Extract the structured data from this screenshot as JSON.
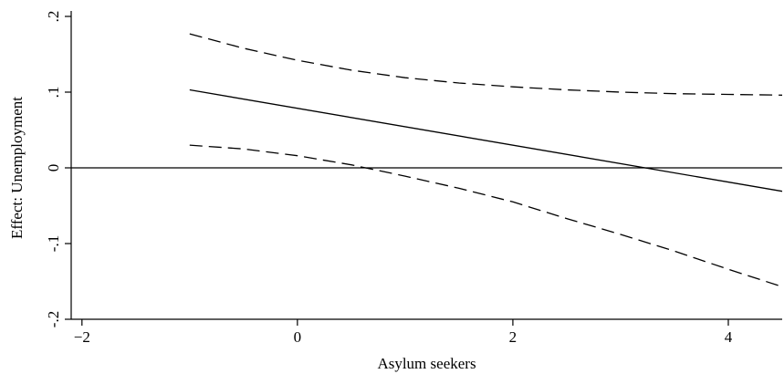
{
  "chart_data": {
    "type": "line",
    "title": "",
    "xlabel": "Asylum seekers",
    "ylabel": "Effect: Unemployment",
    "xlim": [
      -2.1,
      4.5
    ],
    "ylim": [
      -0.2,
      0.2
    ],
    "x_ticks": [
      {
        "value": -2,
        "label": "−2"
      },
      {
        "value": 0,
        "label": "0"
      },
      {
        "value": 2,
        "label": "2"
      },
      {
        "value": 4,
        "label": "4"
      }
    ],
    "y_ticks": [
      {
        "value": -0.2,
        "label": "-.2"
      },
      {
        "value": -0.1,
        "label": "-.1"
      },
      {
        "value": 0,
        "label": "0"
      },
      {
        "value": 0.1,
        "label": ".1"
      },
      {
        "value": 0.2,
        "label": ".2"
      }
    ],
    "reference_line_y": 0,
    "grid": false,
    "legend": "none",
    "series": [
      {
        "style": "solid",
        "x": [
          -1,
          4.5
        ],
        "y": [
          0.103,
          -0.031
        ]
      },
      {
        "style": "dashed",
        "x": [
          -1,
          -0.5,
          0,
          0.5,
          1,
          1.5,
          2,
          2.5,
          3,
          3.5,
          4,
          4.5
        ],
        "y": [
          0.177,
          0.158,
          0.142,
          0.129,
          0.119,
          0.112,
          0.107,
          0.103,
          0.1,
          0.098,
          0.097,
          0.096
        ]
      },
      {
        "style": "dashed",
        "x": [
          -1,
          -0.5,
          0,
          0.5,
          1,
          1.5,
          2,
          2.5,
          3,
          3.5,
          4,
          4.5
        ],
        "y": [
          0.03,
          0.025,
          0.016,
          0.004,
          -0.011,
          -0.027,
          -0.045,
          -0.067,
          -0.088,
          -0.11,
          -0.134,
          -0.157
        ]
      }
    ]
  }
}
